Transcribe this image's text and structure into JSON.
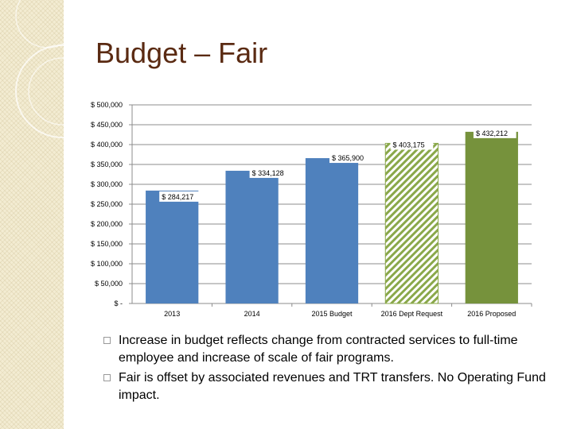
{
  "slide": {
    "title": "Budget – Fair",
    "bullets": [
      "Increase in budget reflects change from contracted services to full-time employee and increase of scale of fair programs.",
      "Fair is offset by associated revenues and TRT transfers. No Operating Fund impact."
    ]
  },
  "colors": {
    "blue": "#4f81bd",
    "green": "#76923c",
    "hatch": "#8aa84a",
    "title": "#5a2a12",
    "band": "#f3ecd2"
  },
  "chart_data": {
    "type": "bar",
    "categories": [
      "2013",
      "2014",
      "2015 Budget",
      "2016 Dept Request",
      "2016 Proposed"
    ],
    "values": [
      284217,
      334128,
      365900,
      403175,
      432212
    ],
    "data_labels": [
      "$ 284,217",
      "$ 334,128",
      "$ 365,900",
      "$ 403,175",
      "$ 432,212"
    ],
    "bar_styles": [
      "blue",
      "blue",
      "blue",
      "hatch",
      "green"
    ],
    "yticks": [
      0,
      50000,
      100000,
      150000,
      200000,
      250000,
      300000,
      350000,
      400000,
      450000,
      500000
    ],
    "ytick_labels": [
      "$ -",
      "$ 50,000",
      "$ 100,000",
      "$ 150,000",
      "$ 200,000",
      "$ 250,000",
      "$ 300,000",
      "$ 350,000",
      "$ 400,000",
      "$ 450,000",
      "$ 500,000"
    ],
    "ylim": [
      0,
      500000
    ],
    "grid": true
  }
}
